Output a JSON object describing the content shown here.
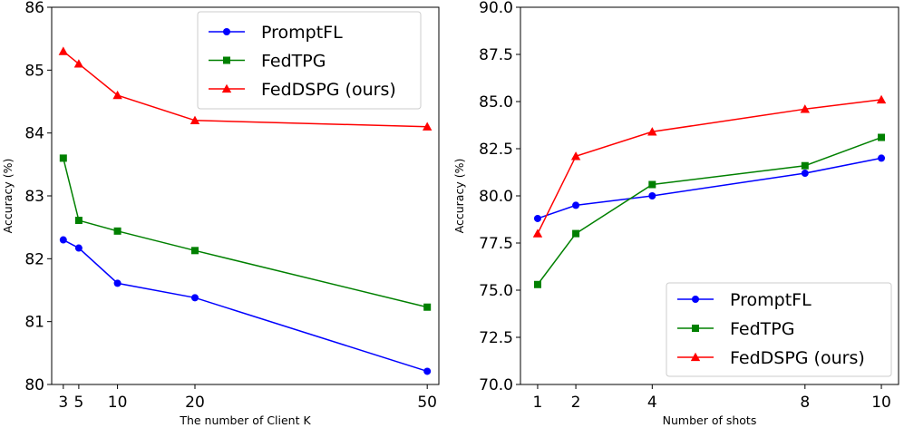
{
  "chart_data": [
    {
      "type": "line",
      "title": "",
      "xlabel": "The number of Client K",
      "ylabel": "Accuracy (%)",
      "xlim": [
        1.5,
        51.5
      ],
      "ylim": [
        80,
        86
      ],
      "xticks": [
        3,
        5,
        10,
        20,
        50
      ],
      "xtick_labels": [
        "3",
        "5",
        "10",
        "20",
        "50"
      ],
      "yticks": [
        80,
        81,
        82,
        83,
        84,
        85,
        86
      ],
      "ytick_labels": [
        "80",
        "81",
        "82",
        "83",
        "84",
        "85",
        "86"
      ],
      "x": [
        3,
        5,
        10,
        20,
        50
      ],
      "legend_position": "top-right",
      "series": [
        {
          "name": "PromptFL",
          "color": "#0000ff",
          "marker": "circle",
          "values": [
            82.3,
            82.17,
            81.61,
            81.38,
            80.21
          ]
        },
        {
          "name": "FedTPG",
          "color": "#008000",
          "marker": "square",
          "values": [
            83.6,
            82.61,
            82.44,
            82.13,
            81.23
          ]
        },
        {
          "name": "FedDSPG (ours)",
          "color": "#ff0000",
          "marker": "triangle",
          "values": [
            85.3,
            85.1,
            84.6,
            84.2,
            84.1
          ]
        }
      ]
    },
    {
      "type": "line",
      "title": "",
      "xlabel": "Number of shots",
      "ylabel": "Accuracy (%)",
      "xlim": [
        0.55,
        10.45
      ],
      "ylim": [
        70,
        90
      ],
      "xticks": [
        1,
        2,
        4,
        8,
        10
      ],
      "xtick_labels": [
        "1",
        "2",
        "4",
        "8",
        "10"
      ],
      "yticks": [
        70,
        72.5,
        75,
        77.5,
        80,
        82.5,
        85,
        87.5,
        90
      ],
      "ytick_labels": [
        "70.0",
        "72.5",
        "75.0",
        "77.5",
        "80.0",
        "82.5",
        "85.0",
        "87.5",
        "90.0"
      ],
      "x": [
        1,
        2,
        4,
        8,
        10
      ],
      "legend_position": "bottom-right",
      "series": [
        {
          "name": "PromptFL",
          "color": "#0000ff",
          "marker": "circle",
          "values": [
            78.8,
            79.5,
            80.0,
            81.2,
            82.0
          ]
        },
        {
          "name": "FedTPG",
          "color": "#008000",
          "marker": "square",
          "values": [
            75.3,
            78.0,
            80.6,
            81.6,
            83.1
          ]
        },
        {
          "name": "FedDSPG (ours)",
          "color": "#ff0000",
          "marker": "triangle",
          "values": [
            78.0,
            82.1,
            83.4,
            84.6,
            85.1
          ]
        }
      ]
    }
  ]
}
